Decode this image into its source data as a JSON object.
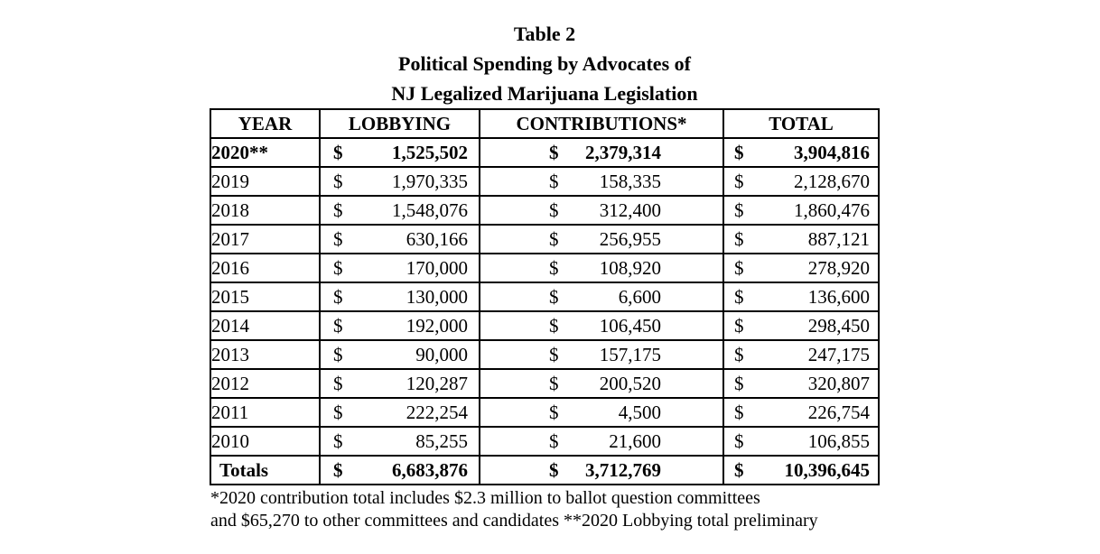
{
  "title": {
    "line1": "Table 2",
    "line2": "Political Spending by Advocates of",
    "line3": "NJ Legalized Marijuana Legislation"
  },
  "table": {
    "headers": [
      "YEAR",
      "LOBBYING",
      "CONTRIBUTIONS*",
      "TOTAL"
    ],
    "currency_symbol": "$",
    "rows": [
      {
        "year": "2020**",
        "lobbying": "1,525,502",
        "contributions": "2,379,314",
        "total": "3,904,816",
        "bold": true
      },
      {
        "year": "2019",
        "lobbying": "1,970,335",
        "contributions": "158,335",
        "total": "2,128,670",
        "bold": false
      },
      {
        "year": "2018",
        "lobbying": "1,548,076",
        "contributions": "312,400",
        "total": "1,860,476",
        "bold": false
      },
      {
        "year": "2017",
        "lobbying": "630,166",
        "contributions": "256,955",
        "total": "887,121",
        "bold": false
      },
      {
        "year": "2016",
        "lobbying": "170,000",
        "contributions": "108,920",
        "total": "278,920",
        "bold": false
      },
      {
        "year": "2015",
        "lobbying": "130,000",
        "contributions": "6,600",
        "total": "136,600",
        "bold": false
      },
      {
        "year": "2014",
        "lobbying": "192,000",
        "contributions": "106,450",
        "total": "298,450",
        "bold": false
      },
      {
        "year": "2013",
        "lobbying": "90,000",
        "contributions": "157,175",
        "total": "247,175",
        "bold": false
      },
      {
        "year": "2012",
        "lobbying": "120,287",
        "contributions": "200,520",
        "total": "320,807",
        "bold": false
      },
      {
        "year": "2011",
        "lobbying": "222,254",
        "contributions": "4,500",
        "total": "226,754",
        "bold": false
      },
      {
        "year": "2010",
        "lobbying": "85,255",
        "contributions": "21,600",
        "total": "106,855",
        "bold": false
      }
    ],
    "totals_row": {
      "year": "Totals",
      "lobbying": "6,683,876",
      "contributions": "3,712,769",
      "total": "10,396,645",
      "bold": true
    }
  },
  "footnote": {
    "line1": "*2020 contribution total includes $2.3 million to ballot question committees",
    "line2": "and $65,270 to other committees and candidates **2020 Lobbying total preliminary"
  },
  "chart_data": {
    "type": "table",
    "title": "Table 2 - Political Spending by Advocates of NJ Legalized Marijuana Legislation",
    "columns": [
      "YEAR",
      "LOBBYING",
      "CONTRIBUTIONS*",
      "TOTAL"
    ],
    "categories": [
      "2020",
      "2019",
      "2018",
      "2017",
      "2016",
      "2015",
      "2014",
      "2013",
      "2012",
      "2011",
      "2010"
    ],
    "series": [
      {
        "name": "LOBBYING",
        "values": [
          1525502,
          1970335,
          1548076,
          630166,
          170000,
          130000,
          192000,
          90000,
          120287,
          222254,
          85255
        ]
      },
      {
        "name": "CONTRIBUTIONS*",
        "values": [
          2379314,
          158335,
          312400,
          256955,
          108920,
          6600,
          106450,
          157175,
          200520,
          4500,
          21600
        ]
      },
      {
        "name": "TOTAL",
        "values": [
          3904816,
          2128670,
          1860476,
          887121,
          278920,
          136600,
          298450,
          247175,
          320807,
          226754,
          106855
        ]
      }
    ],
    "totals": {
      "LOBBYING": 6683876,
      "CONTRIBUTIONS*": 3712769,
      "TOTAL": 10396645
    }
  }
}
